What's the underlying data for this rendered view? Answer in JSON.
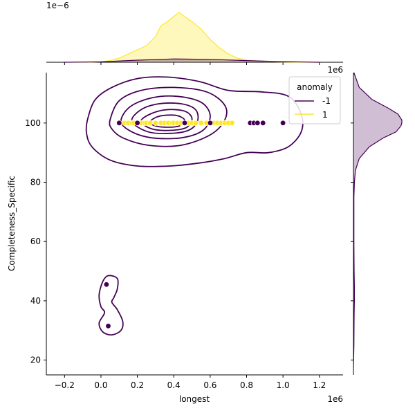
{
  "chart_data": {
    "type": "scatter",
    "subtype": "jointplot-kde",
    "xlabel": "longest",
    "ylabel": "Completeness_Specific",
    "x_offset_label": "1e6",
    "y_offset_label": "1e6",
    "top_marginal_offset_label": "1e−6",
    "xlim": [
      -0.3,
      1.33
    ],
    "ylim": [
      15,
      117
    ],
    "x_ticks": [
      -0.2,
      0.0,
      0.2,
      0.4,
      0.6,
      0.8,
      1.0,
      1.2
    ],
    "x_tick_labels": [
      "−0.2",
      "0.0",
      "0.2",
      "0.4",
      "0.6",
      "0.8",
      "1.0",
      "1.2"
    ],
    "y_ticks": [
      20,
      40,
      60,
      80,
      100
    ],
    "y_tick_labels": [
      "20",
      "40",
      "60",
      "80",
      "100"
    ],
    "grid": false,
    "legend": {
      "title": "anomaly",
      "placement": "top-right",
      "entries": [
        {
          "label": "-1",
          "color": "#440154"
        },
        {
          "label": "1",
          "color": "#fde725"
        }
      ]
    },
    "series": [
      {
        "name": "-1",
        "color": "#440154",
        "points": [
          {
            "x": 0.1,
            "y": 100
          },
          {
            "x": 0.2,
            "y": 100
          },
          {
            "x": 0.46,
            "y": 100
          },
          {
            "x": 0.6,
            "y": 100
          },
          {
            "x": 0.82,
            "y": 100
          },
          {
            "x": 0.84,
            "y": 100
          },
          {
            "x": 0.86,
            "y": 100
          },
          {
            "x": 0.89,
            "y": 100
          },
          {
            "x": 1.0,
            "y": 100
          },
          {
            "x": 0.03,
            "y": 45.5
          },
          {
            "x": 0.04,
            "y": 31.5
          }
        ]
      },
      {
        "name": "1",
        "color": "#fde725",
        "points": [
          {
            "x": 0.13,
            "y": 100
          },
          {
            "x": 0.15,
            "y": 100
          },
          {
            "x": 0.17,
            "y": 100
          },
          {
            "x": 0.18,
            "y": 100
          },
          {
            "x": 0.22,
            "y": 100
          },
          {
            "x": 0.24,
            "y": 100
          },
          {
            "x": 0.25,
            "y": 100
          },
          {
            "x": 0.27,
            "y": 100
          },
          {
            "x": 0.3,
            "y": 100
          },
          {
            "x": 0.33,
            "y": 100
          },
          {
            "x": 0.35,
            "y": 100
          },
          {
            "x": 0.37,
            "y": 100
          },
          {
            "x": 0.39,
            "y": 100
          },
          {
            "x": 0.4,
            "y": 100
          },
          {
            "x": 0.42,
            "y": 100
          },
          {
            "x": 0.44,
            "y": 100
          },
          {
            "x": 0.48,
            "y": 100
          },
          {
            "x": 0.5,
            "y": 100
          },
          {
            "x": 0.52,
            "y": 100
          },
          {
            "x": 0.55,
            "y": 100
          },
          {
            "x": 0.58,
            "y": 100
          },
          {
            "x": 0.62,
            "y": 100
          },
          {
            "x": 0.64,
            "y": 100
          },
          {
            "x": 0.66,
            "y": 100
          },
          {
            "x": 0.68,
            "y": 100
          },
          {
            "x": 0.7,
            "y": 100
          },
          {
            "x": 0.72,
            "y": 100
          }
        ]
      }
    ],
    "kde_contours_series_-1": [
      [
        [
          -0.07,
          102
        ],
        [
          -0.03,
          108
        ],
        [
          0.06,
          112
        ],
        [
          0.2,
          115
        ],
        [
          0.36,
          115.5
        ],
        [
          0.54,
          114
        ],
        [
          0.7,
          111
        ],
        [
          0.88,
          110.5
        ],
        [
          1.03,
          109
        ],
        [
          1.1,
          103
        ],
        [
          1.1,
          97
        ],
        [
          1.03,
          92
        ],
        [
          0.92,
          90
        ],
        [
          0.8,
          90
        ],
        [
          0.68,
          88
        ],
        [
          0.54,
          86.5
        ],
        [
          0.38,
          85.5
        ],
        [
          0.2,
          85.5
        ],
        [
          0.05,
          87.5
        ],
        [
          -0.05,
          92
        ],
        [
          -0.08,
          97
        ]
      ],
      [
        [
          0.05,
          101
        ],
        [
          0.1,
          107.5
        ],
        [
          0.22,
          111
        ],
        [
          0.4,
          112
        ],
        [
          0.58,
          110.5
        ],
        [
          0.68,
          106
        ],
        [
          0.68,
          101
        ],
        [
          0.6,
          96
        ],
        [
          0.44,
          92.5
        ],
        [
          0.26,
          92.5
        ],
        [
          0.12,
          95
        ],
        [
          0.06,
          98
        ]
      ],
      [
        [
          0.11,
          100.5
        ],
        [
          0.16,
          105.5
        ],
        [
          0.28,
          108.5
        ],
        [
          0.42,
          109
        ],
        [
          0.55,
          107
        ],
        [
          0.6,
          102.5
        ],
        [
          0.56,
          97.5
        ],
        [
          0.44,
          95
        ],
        [
          0.28,
          95
        ],
        [
          0.17,
          97
        ]
      ],
      [
        [
          0.17,
          100.5
        ],
        [
          0.22,
          104.5
        ],
        [
          0.32,
          106.5
        ],
        [
          0.44,
          106.5
        ],
        [
          0.52,
          104.5
        ],
        [
          0.53,
          100.5
        ],
        [
          0.48,
          97.5
        ],
        [
          0.38,
          96.5
        ],
        [
          0.26,
          97
        ]
      ],
      [
        [
          0.22,
          100.5
        ],
        [
          0.27,
          103
        ],
        [
          0.36,
          104.5
        ],
        [
          0.46,
          104
        ],
        [
          0.5,
          101.5
        ],
        [
          0.47,
          98.5
        ],
        [
          0.38,
          97.5
        ],
        [
          0.28,
          98
        ]
      ],
      [
        [
          0.27,
          100.5
        ],
        [
          0.32,
          102.3
        ],
        [
          0.41,
          102.6
        ],
        [
          0.46,
          101
        ],
        [
          0.43,
          99
        ],
        [
          0.35,
          98.6
        ],
        [
          0.29,
          99.2
        ]
      ],
      [
        [
          0.0,
          38
        ],
        [
          -0.01,
          42
        ],
        [
          0.01,
          46.5
        ],
        [
          0.04,
          48.5
        ],
        [
          0.09,
          47.5
        ],
        [
          0.09,
          44
        ],
        [
          0.07,
          41
        ],
        [
          0.06,
          39.5
        ],
        [
          0.09,
          37
        ],
        [
          0.12,
          33
        ],
        [
          0.11,
          30
        ],
        [
          0.06,
          28.5
        ],
        [
          0.01,
          29.5
        ],
        [
          -0.01,
          32.5
        ],
        [
          0.02,
          36
        ]
      ]
    ],
    "top_marginal_series": [
      {
        "name": "1",
        "color": "#fde725",
        "x": [
          -0.15,
          -0.05,
          0.0,
          0.05,
          0.1,
          0.15,
          0.2,
          0.25,
          0.3,
          0.33,
          0.36,
          0.4,
          0.43,
          0.46,
          0.5,
          0.55,
          0.6,
          0.65,
          0.7,
          0.75,
          0.8,
          0.9,
          1.0,
          1.1,
          1.2
        ],
        "y": [
          0.0,
          0.003,
          0.012,
          0.04,
          0.1,
          0.2,
          0.3,
          0.4,
          0.62,
          0.88,
          0.96,
          1.1,
          1.2,
          1.1,
          0.98,
          0.8,
          0.55,
          0.35,
          0.2,
          0.1,
          0.05,
          0.015,
          0.005,
          0.002,
          0.0
        ]
      },
      {
        "name": "-1",
        "color": "#440154",
        "x": [
          -0.2,
          0.0,
          0.2,
          0.4,
          0.6,
          0.8,
          1.0,
          1.2
        ],
        "y": [
          0.0,
          0.01,
          0.05,
          0.08,
          0.07,
          0.04,
          0.015,
          0.0
        ]
      }
    ],
    "right_marginal_series": [
      {
        "name": "-1",
        "color": "#440154",
        "y": [
          117,
          112,
          108,
          105,
          103,
          101,
          100,
          99,
          97,
          95,
          92,
          88,
          84,
          80,
          75,
          60,
          50,
          45,
          40,
          35,
          25,
          17
        ],
        "density": [
          0.01,
          0.12,
          0.38,
          0.72,
          0.92,
          1.0,
          1.0,
          0.98,
          0.88,
          0.62,
          0.33,
          0.12,
          0.04,
          0.02,
          0.01,
          0.01,
          0.015,
          0.02,
          0.02,
          0.015,
          0.01,
          0.0
        ]
      }
    ]
  }
}
